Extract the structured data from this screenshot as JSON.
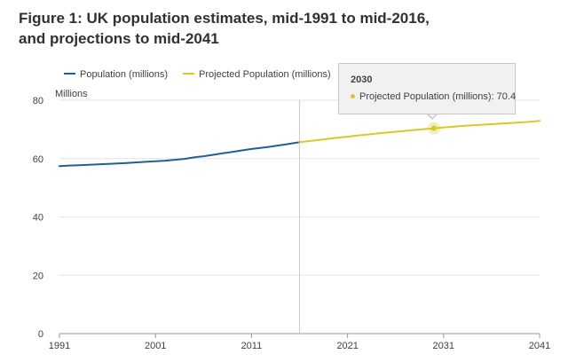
{
  "figure": {
    "title_line1": "Figure 1: UK population estimates, mid-1991 to mid-2016,",
    "title_line2": "and projections to mid-2041"
  },
  "tooltip": {
    "year": "2030",
    "series_label": "Projected Population (millions): 70.4"
  },
  "colors": {
    "estimate": "#206095",
    "projection": "#dcc72a",
    "grid": "#e3e3e3",
    "axis": "#9a9a9a",
    "crosshair": "#cccccc"
  },
  "chart_data": {
    "type": "line",
    "title": "Figure 1: UK population estimates, mid-1991 to mid-2016, and projections to mid-2041",
    "ylabel": "Millions",
    "xlabel": "",
    "xlim": [
      1991,
      2041
    ],
    "ylim": [
      0,
      80
    ],
    "yticks": [
      0,
      20,
      40,
      60,
      80
    ],
    "xticks": [
      1991,
      2001,
      2011,
      2021,
      2031,
      2041
    ],
    "legend": "top-left",
    "grid": true,
    "crosshair_x": 2016,
    "highlight": {
      "series": "Projected Population (millions)",
      "x": 2030,
      "y": 70.4
    },
    "series": [
      {
        "name": "Population (millions)",
        "x": [
          1991,
          1992,
          1993,
          1994,
          1995,
          1996,
          1997,
          1998,
          1999,
          2000,
          2001,
          2002,
          2003,
          2004,
          2005,
          2006,
          2007,
          2008,
          2009,
          2010,
          2011,
          2012,
          2013,
          2014,
          2015,
          2016
        ],
        "values": [
          57.4,
          57.6,
          57.7,
          57.9,
          58.0,
          58.2,
          58.3,
          58.5,
          58.7,
          58.9,
          59.1,
          59.3,
          59.6,
          59.9,
          60.4,
          60.8,
          61.3,
          61.8,
          62.3,
          62.8,
          63.3,
          63.7,
          64.1,
          64.6,
          65.1,
          65.6
        ]
      },
      {
        "name": "Projected Population (millions)",
        "x": [
          2016,
          2017,
          2018,
          2019,
          2020,
          2021,
          2022,
          2023,
          2024,
          2025,
          2026,
          2027,
          2028,
          2029,
          2030,
          2031,
          2032,
          2033,
          2034,
          2035,
          2036,
          2037,
          2038,
          2039,
          2040,
          2041
        ],
        "values": [
          65.6,
          66.0,
          66.4,
          66.8,
          67.2,
          67.5,
          67.9,
          68.2,
          68.6,
          68.9,
          69.2,
          69.5,
          69.8,
          70.1,
          70.4,
          70.7,
          70.9,
          71.2,
          71.4,
          71.6,
          71.8,
          72.0,
          72.2,
          72.4,
          72.6,
          72.9
        ]
      }
    ]
  }
}
